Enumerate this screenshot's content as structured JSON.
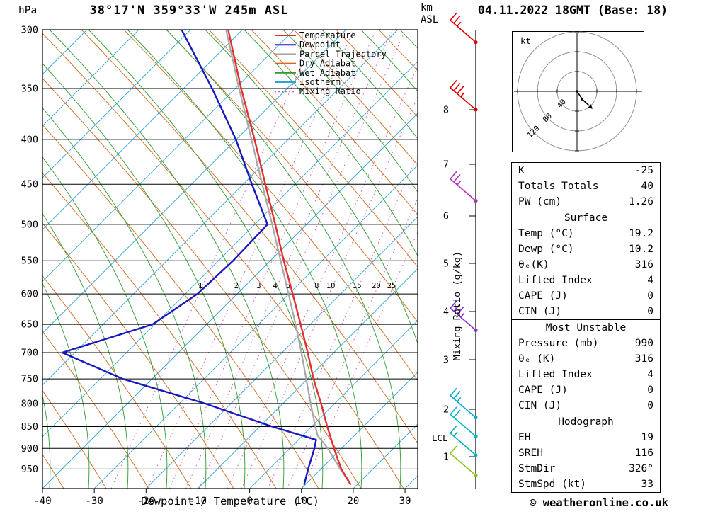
{
  "header": {
    "pressure_unit": "hPa",
    "title": "38°17'N 359°33'W 245m ASL",
    "altitude_unit": "km ASL",
    "datetime": "04.11.2022 18GMT (Base: 18)"
  },
  "axes": {
    "pressure_ticks": [
      300,
      350,
      400,
      450,
      500,
      550,
      600,
      650,
      700,
      750,
      800,
      850,
      900,
      950
    ],
    "temp_ticks": [
      -40,
      -30,
      -20,
      -10,
      0,
      10,
      20,
      30
    ],
    "km_ticks": [
      8,
      7,
      6,
      5,
      4,
      3,
      2,
      1
    ],
    "lcl_label": "LCL",
    "mixing_axis_label": "Mixing Ratio (g/kg)",
    "xlabel": "Dewpoint / Temperature (°C)"
  },
  "legend": [
    {
      "label": "Temperature",
      "color": "#e03030",
      "style": "solid"
    },
    {
      "label": "Dewpoint",
      "color": "#1818c0",
      "style": "solid"
    },
    {
      "label": "Parcel Trajectory",
      "color": "#a8a8a8",
      "style": "solid"
    },
    {
      "label": "Dry Adiabat",
      "color": "#d2691e",
      "style": "solid"
    },
    {
      "label": "Wet Adiabat",
      "color": "#2e9b2e",
      "style": "solid"
    },
    {
      "label": "Isotherm",
      "color": "#2fa3d7",
      "style": "solid"
    },
    {
      "label": "Mixing Ratio",
      "color": "#cf5fb4",
      "style": "dotted"
    }
  ],
  "chart_data": {
    "type": "skewt-log-p",
    "pressure_range_hPa": [
      300,
      1000
    ],
    "temp_axis_range_C": [
      -40,
      35
    ],
    "colors": {
      "temperature": "#e03030",
      "dewpoint": "#1818c0",
      "parcel": "#a8a8a8",
      "dry_adiabat": "#d2691e",
      "wet_adiabat": "#2e9b2e",
      "isotherm": "#2fa3d7",
      "mixing_ratio": "#cf5fb4"
    },
    "temperature_profile_p_T": [
      [
        990,
        19.2
      ],
      [
        950,
        16.0
      ],
      [
        925,
        14.4
      ],
      [
        900,
        12.8
      ],
      [
        850,
        9.6
      ],
      [
        800,
        6.4
      ],
      [
        750,
        2.8
      ],
      [
        700,
        -0.6
      ],
      [
        650,
        -4.4
      ],
      [
        600,
        -8.6
      ],
      [
        550,
        -13.2
      ],
      [
        500,
        -18.0
      ],
      [
        450,
        -23.4
      ],
      [
        400,
        -29.4
      ],
      [
        350,
        -36.4
      ],
      [
        300,
        -44.0
      ]
    ],
    "dewpoint_profile_p_T": [
      [
        990,
        10.2
      ],
      [
        950,
        9.6
      ],
      [
        900,
        9.0
      ],
      [
        880,
        8.6
      ],
      [
        850,
        -1.0
      ],
      [
        800,
        -16.0
      ],
      [
        750,
        -34.0
      ],
      [
        700,
        -48.0
      ],
      [
        650,
        -33.0
      ],
      [
        600,
        -27.0
      ],
      [
        550,
        -23.0
      ],
      [
        500,
        -19.5
      ],
      [
        450,
        -26.0
      ],
      [
        400,
        -33.0
      ],
      [
        350,
        -42.0
      ],
      [
        300,
        -53.0
      ]
    ],
    "parcel_profile_p_T": [
      [
        990,
        19.2
      ],
      [
        950,
        15.8
      ],
      [
        900,
        11.6
      ],
      [
        870,
        8.5
      ],
      [
        850,
        7.3
      ],
      [
        800,
        4.4
      ],
      [
        750,
        1.4
      ],
      [
        700,
        -1.8
      ],
      [
        650,
        -5.4
      ],
      [
        600,
        -9.4
      ],
      [
        550,
        -13.8
      ],
      [
        500,
        -18.6
      ],
      [
        450,
        -24.0
      ],
      [
        400,
        -30.0
      ],
      [
        350,
        -36.8
      ],
      [
        300,
        -44.4
      ]
    ],
    "mixing_ratio_g_kg": [
      1,
      2,
      3,
      4,
      5,
      8,
      10,
      15,
      20,
      25
    ],
    "lcl_pressure_hPa": 876,
    "wind_barbs": [
      {
        "pressure": 310,
        "speed_kt": 25,
        "color": "#dd0000"
      },
      {
        "pressure": 370,
        "speed_kt": 35,
        "color": "#dd0000"
      },
      {
        "pressure": 470,
        "speed_kt": 25,
        "color": "#b52fb5"
      },
      {
        "pressure": 660,
        "speed_kt": 35,
        "color": "#8a2fd0"
      },
      {
        "pressure": 830,
        "speed_kt": 25,
        "color": "#00a8d8"
      },
      {
        "pressure": 872,
        "speed_kt": 20,
        "color": "#00b8c8"
      },
      {
        "pressure": 916,
        "speed_kt": 15,
        "color": "#00b4b4"
      },
      {
        "pressure": 966,
        "speed_kt": 10,
        "color": "#8fc31f"
      }
    ]
  },
  "hodograph": {
    "unit_label": "kt",
    "ring_labels_kt": [
      40,
      80,
      120
    ]
  },
  "table": {
    "indices": {
      "rows": [
        [
          "K",
          "-25"
        ],
        [
          "Totals Totals",
          "40"
        ],
        [
          "PW (cm)",
          "1.26"
        ]
      ]
    },
    "surface": {
      "title": "Surface",
      "rows": [
        [
          "Temp (°C)",
          "19.2"
        ],
        [
          "Dewp (°C)",
          "10.2"
        ],
        [
          "θₑ(K)",
          "316"
        ],
        [
          "Lifted Index",
          "4"
        ],
        [
          "CAPE (J)",
          "0"
        ],
        [
          "CIN (J)",
          "0"
        ]
      ]
    },
    "most_unstable": {
      "title": "Most Unstable",
      "rows": [
        [
          "Pressure (mb)",
          "990"
        ],
        [
          "θₑ (K)",
          "316"
        ],
        [
          "Lifted Index",
          "4"
        ],
        [
          "CAPE (J)",
          "0"
        ],
        [
          "CIN (J)",
          "0"
        ]
      ]
    },
    "hodograph_info": {
      "title": "Hodograph",
      "rows": [
        [
          "EH",
          "19"
        ],
        [
          "SREH",
          "116"
        ],
        [
          "StmDir",
          "326°"
        ],
        [
          "StmSpd (kt)",
          "33"
        ]
      ]
    }
  },
  "footer": {
    "copyright": "© weatheronline.co.uk"
  }
}
